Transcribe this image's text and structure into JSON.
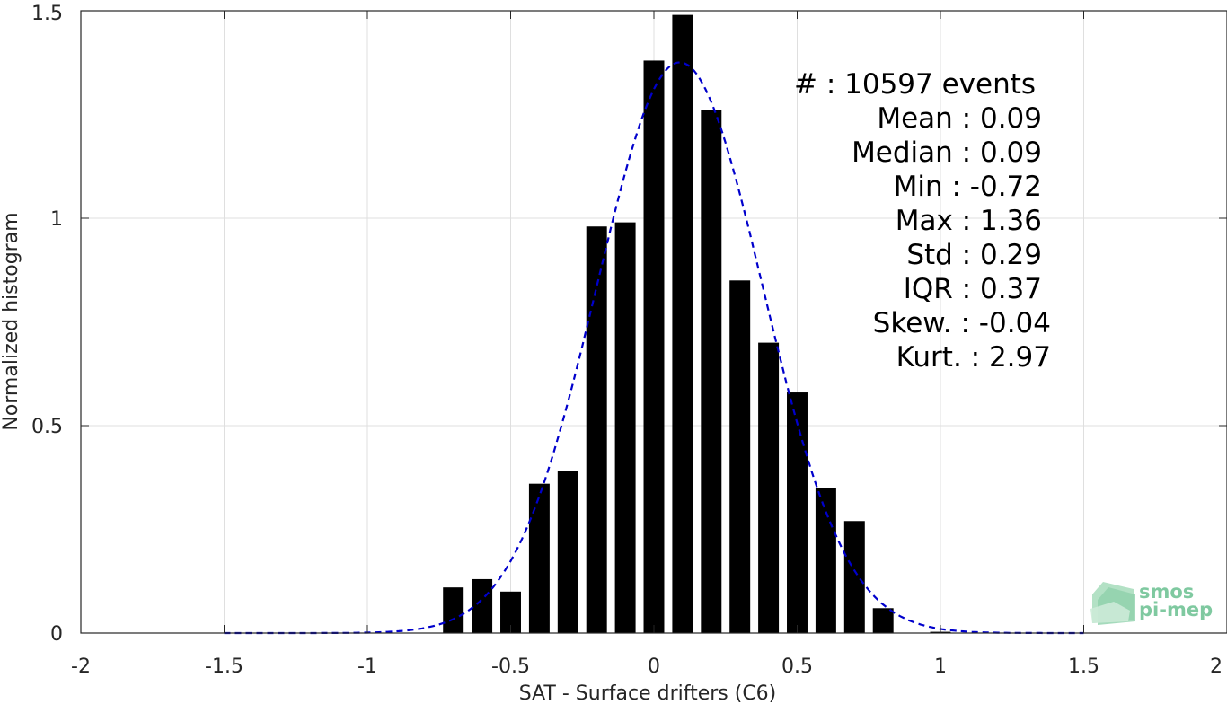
{
  "chart_data": {
    "type": "bar",
    "xlabel": "SAT - Surface drifters (C6)",
    "ylabel": "Normalized histogram",
    "xlim": [
      -2,
      2
    ],
    "ylim": [
      0,
      1.5
    ],
    "xticks": [
      -2,
      -1.5,
      -1,
      -0.5,
      0,
      0.5,
      1,
      1.5,
      2
    ],
    "xtick_labels": [
      "-2",
      "-1.5",
      "-1",
      "-0.5",
      "0",
      "0.5",
      "1",
      "1.5",
      "2"
    ],
    "yticks": [
      0,
      0.5,
      1,
      1.5
    ],
    "ytick_labels": [
      "0",
      "0.5",
      "1",
      "1.5"
    ],
    "grid": true,
    "bars": {
      "x": [
        -0.7,
        -0.6,
        -0.5,
        -0.4,
        -0.3,
        -0.2,
        -0.1,
        0,
        0.1,
        0.2,
        0.3,
        0.4,
        0.5,
        0.6,
        0.7,
        0.8,
        1.0
      ],
      "values": [
        0.11,
        0.13,
        0.1,
        0.36,
        0.39,
        0.98,
        0.99,
        1.38,
        1.49,
        1.26,
        0.85,
        0.7,
        0.58,
        0.35,
        0.27,
        0.06,
        0.003
      ],
      "color": "#000000"
    },
    "fit": {
      "style": "dashed",
      "color": "#0000cc",
      "mean": 0.09,
      "std": 0.29,
      "x_range": [
        -1.5,
        1.5
      ]
    },
    "stats": {
      "events": "#  : 10597 events",
      "mean": "Mean : 0.09",
      "median": "Median : 0.09",
      "min": "Min : -0.72",
      "max": "Max : 1.36",
      "std": "Std : 0.29",
      "iqr": "IQR : 0.37",
      "skew": "Skew. : -0.04",
      "kurt": "Kurt. : 2.97"
    },
    "logo": {
      "line1": "smos",
      "line2": "pi-mep",
      "color": "#5fbf8a"
    }
  }
}
